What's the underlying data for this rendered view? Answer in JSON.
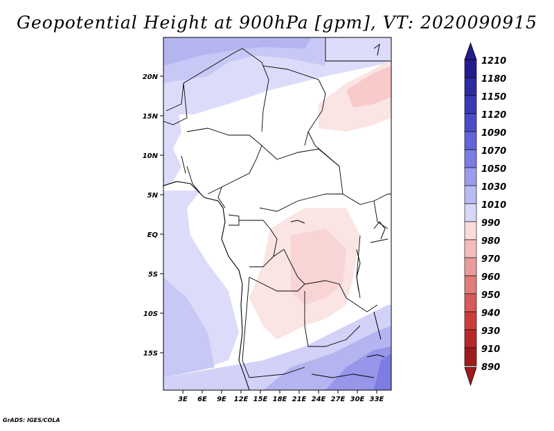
{
  "title": "Geopotential Height at 900hPa [gpm], VT: 2020090915",
  "credit": "GrADS: IGES/COLA",
  "map": {
    "lat_ticks": [
      "20N",
      "15N",
      "10N",
      "5N",
      "EQ",
      "5S",
      "10S",
      "15S"
    ],
    "lon_ticks": [
      "3E",
      "6E",
      "9E",
      "12E",
      "15E",
      "18E",
      "21E",
      "24E",
      "27E",
      "30E",
      "33E"
    ]
  },
  "colorbar": {
    "levels": [
      "1210",
      "1180",
      "1150",
      "1120",
      "1090",
      "1070",
      "1050",
      "1030",
      "1010",
      "990",
      "980",
      "970",
      "960",
      "950",
      "940",
      "930",
      "910",
      "890"
    ],
    "colors": [
      "#241c8c",
      "#2e2aa0",
      "#3a3ab8",
      "#4c4cca",
      "#6464d8",
      "#7c7ce2",
      "#9c9cee",
      "#babaf4",
      "#d6d6f8",
      "#ffffff",
      "#fadcdc",
      "#f4bcbc",
      "#ea9c9c",
      "#e07c7c",
      "#d85a5a",
      "#cc3c3c",
      "#b82828",
      "#a01c1c"
    ]
  },
  "chart_data": {
    "type": "heatmap",
    "title": "Geopotential Height at 900hPa [gpm], VT: 2020090915",
    "xlabel": "",
    "ylabel": "",
    "x_ticks": [
      "3E",
      "6E",
      "9E",
      "12E",
      "15E",
      "18E",
      "21E",
      "24E",
      "27E",
      "30E",
      "33E"
    ],
    "y_ticks": [
      "20N",
      "15N",
      "10N",
      "5N",
      "EQ",
      "5S",
      "10S",
      "15S"
    ],
    "xlim": [
      0,
      35
    ],
    "ylim": [
      -20,
      25
    ],
    "colorbar_levels": [
      1210,
      1180,
      1150,
      1120,
      1090,
      1070,
      1050,
      1030,
      1010,
      990,
      980,
      970,
      960,
      950,
      940,
      930,
      910,
      890
    ],
    "colorbar_units": "gpm"
  }
}
